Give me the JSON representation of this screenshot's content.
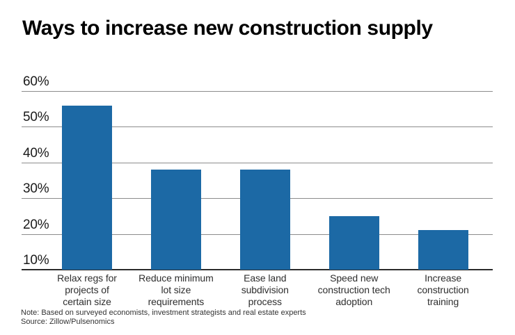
{
  "title": "Ways to increase new construction supply",
  "footer": {
    "note": "Note: Based on surveyed economists, investment strategists and real estate experts",
    "source": "Source: Zillow/Pulsenomics"
  },
  "chart_data": {
    "type": "bar",
    "title": "Ways to increase new construction supply",
    "categories": [
      "Relax regs for\nprojects of\ncertain size",
      "Reduce minimum\nlot size\nrequirements",
      "Ease land\nsubdivision\nprocess",
      "Speed new\nconstruction tech\nadoption",
      "Increase\nconstruction\ntraining"
    ],
    "values": [
      56,
      38,
      38,
      25,
      21
    ],
    "xlabel": "",
    "ylabel": "",
    "ylim": [
      10,
      60
    ],
    "yticks": [
      10,
      20,
      30,
      40,
      50,
      60
    ],
    "ytick_suffix": "%",
    "grid": true,
    "legend": false,
    "colors": {
      "bar": "#1c69a5",
      "gridline": "#8c8c8c",
      "baseline": "#2b2b2b",
      "title_text": "#000000",
      "tick_text": "#1a1a1a",
      "category_text": "#2e2e2e",
      "footer_text": "#333333",
      "background": "#ffffff"
    }
  }
}
